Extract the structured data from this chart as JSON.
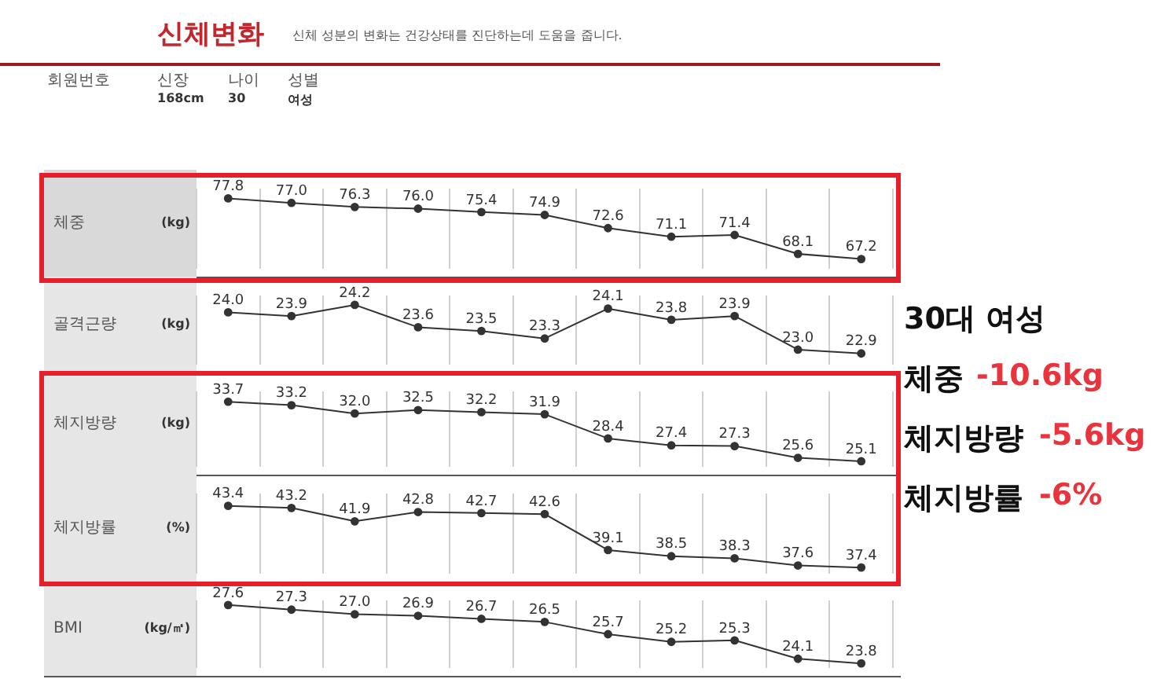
{
  "chart_data": [
    {
      "type": "other",
      "title": "신체변화",
      "subtitle": "신체 성분의 변화는 건강상태를 진단하는데 도움을 줍니다.",
      "annotations": [
        "회원번호",
        "신장",
        "168cm",
        "나이",
        "30",
        "성별",
        "여성"
      ]
    },
    {
      "type": "line",
      "ylabel": "체중",
      "annotations": [
        "(kg)"
      ],
      "categories": [
        null,
        null,
        null,
        null,
        null,
        null,
        null,
        null,
        null,
        null,
        null
      ],
      "series": [
        {
          "color": "#333333",
          "values": [
            77.8,
            77.0,
            76.3,
            76.0,
            75.4,
            74.9,
            72.6,
            71.1,
            71.4,
            68.1,
            67.2
          ],
          "value_labels": [
            "77.8",
            "77.0",
            "76.3",
            "76.0",
            "75.4",
            "74.9",
            "72.6",
            "71.1",
            "71.4",
            "68.1",
            "67.2"
          ]
        }
      ],
      "ylim": [
        65.5,
        79.5
      ],
      "grid": "x",
      "legend": false,
      "marker": "circle",
      "line_style": "solid"
    },
    {
      "type": "line",
      "ylabel": "골격근량",
      "annotations": [
        "(kg)"
      ],
      "categories": [
        null,
        null,
        null,
        null,
        null,
        null,
        null,
        null,
        null,
        null,
        null
      ],
      "series": [
        {
          "color": "#333333",
          "values": [
            24.0,
            23.9,
            24.2,
            23.6,
            23.5,
            23.3,
            24.1,
            23.8,
            23.9,
            23.0,
            22.9
          ],
          "value_labels": [
            "24.0",
            "23.9",
            "24.2",
            "23.6",
            "23.5",
            "23.3",
            "24.1",
            "23.8",
            "23.9",
            "23.0",
            "22.9"
          ]
        }
      ],
      "ylim": [
        22.6,
        24.45
      ],
      "grid": "x",
      "legend": false,
      "marker": "circle",
      "line_style": "solid"
    },
    {
      "type": "line",
      "ylabel": "체지방량",
      "annotations": [
        "(kg)"
      ],
      "categories": [
        null,
        null,
        null,
        null,
        null,
        null,
        null,
        null,
        null,
        null,
        null
      ],
      "series": [
        {
          "color": "#333333",
          "values": [
            33.7,
            33.2,
            32.0,
            32.5,
            32.2,
            31.9,
            28.4,
            27.4,
            27.3,
            25.6,
            25.1
          ],
          "value_labels": [
            "33.7",
            "33.2",
            "32.0",
            "32.5",
            "32.2",
            "31.9",
            "28.4",
            "27.4",
            "27.3",
            "25.6",
            "25.1"
          ]
        }
      ],
      "ylim": [
        24.3,
        35.2
      ],
      "grid": "x",
      "legend": false,
      "marker": "circle",
      "line_style": "solid"
    },
    {
      "type": "line",
      "ylabel": "체지방률",
      "annotations": [
        "(%)"
      ],
      "categories": [
        null,
        null,
        null,
        null,
        null,
        null,
        null,
        null,
        null,
        null,
        null
      ],
      "series": [
        {
          "color": "#333333",
          "values": [
            43.4,
            43.2,
            41.9,
            42.8,
            42.7,
            42.6,
            39.1,
            38.5,
            38.3,
            37.6,
            37.4
          ],
          "value_labels": [
            "43.4",
            "43.2",
            "41.9",
            "42.8",
            "42.7",
            "42.6",
            "39.1",
            "38.5",
            "38.3",
            "37.6",
            "37.4"
          ]
        }
      ],
      "ylim": [
        36.8,
        44.6
      ],
      "grid": "x",
      "legend": false,
      "marker": "circle",
      "line_style": "solid"
    },
    {
      "type": "line",
      "ylabel": "BMI",
      "annotations": [
        "(kg/㎡)"
      ],
      "categories": [
        null,
        null,
        null,
        null,
        null,
        null,
        null,
        null,
        null,
        null,
        null
      ],
      "series": [
        {
          "color": "#333333",
          "values": [
            27.6,
            27.3,
            27.0,
            26.9,
            26.7,
            26.5,
            25.7,
            25.2,
            25.3,
            24.1,
            23.8
          ],
          "value_labels": [
            "27.6",
            "27.3",
            "27.0",
            "26.9",
            "26.7",
            "26.5",
            "25.7",
            "25.2",
            "25.3",
            "24.1",
            "23.8"
          ]
        }
      ],
      "ylim": [
        23.5,
        27.9
      ],
      "grid": "x",
      "legend": false,
      "marker": "circle",
      "line_style": "solid"
    },
    {
      "type": "other",
      "annotations": [
        "30대 여성",
        "체중",
        "-10.6kg",
        "체지방량",
        "-5.6kg",
        "체지방률",
        "-6%"
      ]
    }
  ]
}
